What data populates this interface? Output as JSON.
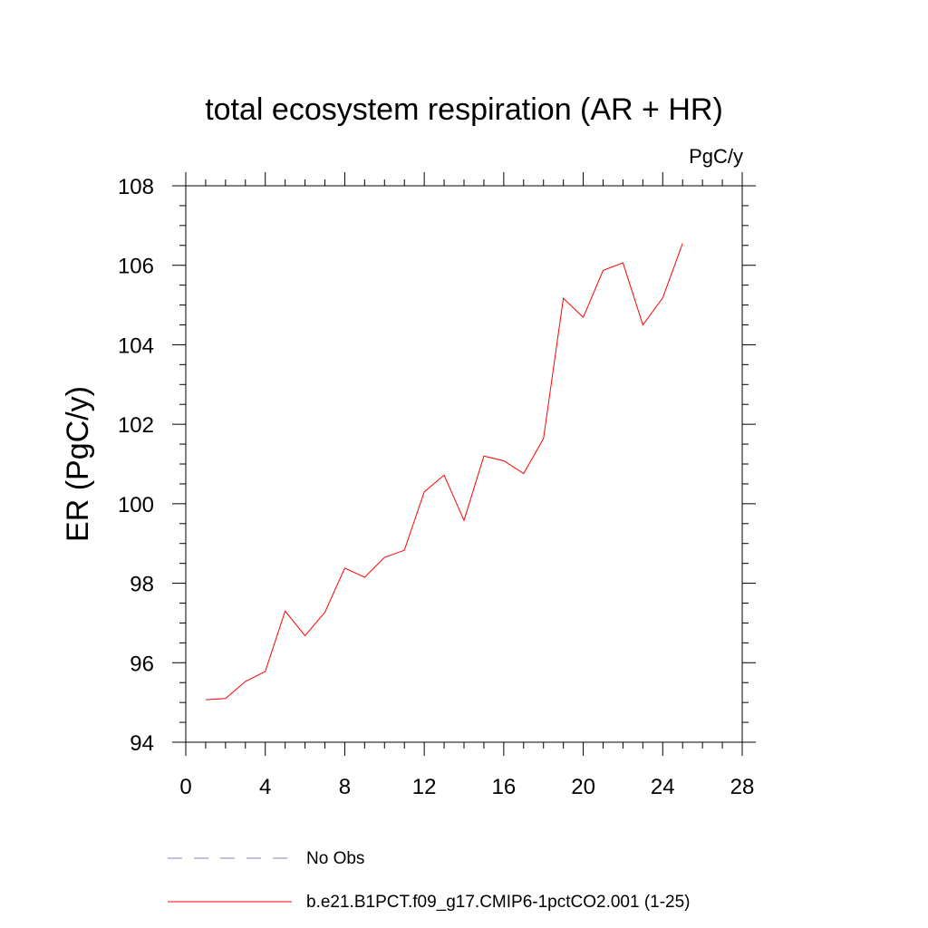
{
  "chart_data": {
    "type": "line",
    "title": "total ecosystem respiration (AR + HR)",
    "units_label": "PgC/y",
    "xlabel": "",
    "ylabel": "ER  (PgC/y)",
    "xlim": [
      0,
      28
    ],
    "ylim": [
      94,
      108
    ],
    "x_ticks": [
      "0",
      "4",
      "8",
      "12",
      "16",
      "20",
      "24",
      "28"
    ],
    "y_ticks": [
      "94",
      "96",
      "98",
      "100",
      "102",
      "104",
      "106",
      "108"
    ],
    "grid": false,
    "legend_position": "bottom",
    "series": [
      {
        "name": "No Obs",
        "color": "#8080c0",
        "style": "dashed",
        "x": [],
        "y": []
      },
      {
        "name": "b.e21.B1PCT.f09_g17.CMIP6-1pctCO2.001 (1-25)",
        "color": "#ff0000",
        "style": "solid",
        "x": [
          1,
          2,
          3,
          4,
          5,
          6,
          7,
          8,
          9,
          10,
          11,
          12,
          13,
          14,
          15,
          16,
          17,
          18,
          19,
          20,
          21,
          22,
          23,
          24,
          25
        ],
        "y": [
          95.07,
          95.1,
          95.53,
          95.78,
          97.3,
          96.68,
          97.27,
          98.38,
          98.15,
          98.65,
          98.83,
          100.3,
          100.72,
          99.58,
          101.2,
          101.08,
          100.76,
          101.64,
          105.17,
          104.69,
          105.87,
          106.06,
          104.5,
          105.18,
          106.55
        ]
      }
    ]
  }
}
